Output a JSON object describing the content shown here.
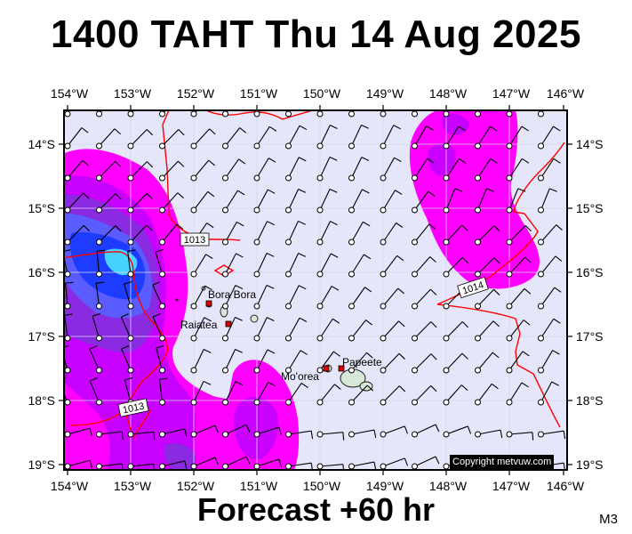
{
  "title": "1400 TAHT Thu 14 Aug 2025",
  "subtitle": "Forecast +60 hr",
  "model_code": "M3",
  "copyright": "Copyright metvuw.com",
  "lon_labels": [
    "154°W",
    "153°W",
    "152°W",
    "151°W",
    "150°W",
    "149°W",
    "148°W",
    "147°W",
    "146°W"
  ],
  "lat_labels": [
    "14°S",
    "15°S",
    "16°S",
    "17°S",
    "18°S",
    "19°S"
  ],
  "places": [
    {
      "name": "Bora Bora",
      "lon": -151.75,
      "lat": -16.5
    },
    {
      "name": "Raiatea",
      "lon": -151.45,
      "lat": -16.8
    },
    {
      "name": "Mo'orea",
      "lon": -149.85,
      "lat": -17.5
    },
    {
      "name": "Papeete",
      "lon": -149.57,
      "lat": -17.53
    }
  ],
  "isobars": [
    "1013",
    "1013",
    "1014"
  ],
  "colors": {
    "sea": "#e6e6fa",
    "rain_light": "#ff00ff",
    "rain_mid": "#c800ff",
    "rain_heavy": "#8a2be2",
    "rain_very_heavy": "#1e3cff",
    "rain_extreme": "#46d2ff",
    "isobar": "#ff0000",
    "island": "#d8e8d8"
  }
}
